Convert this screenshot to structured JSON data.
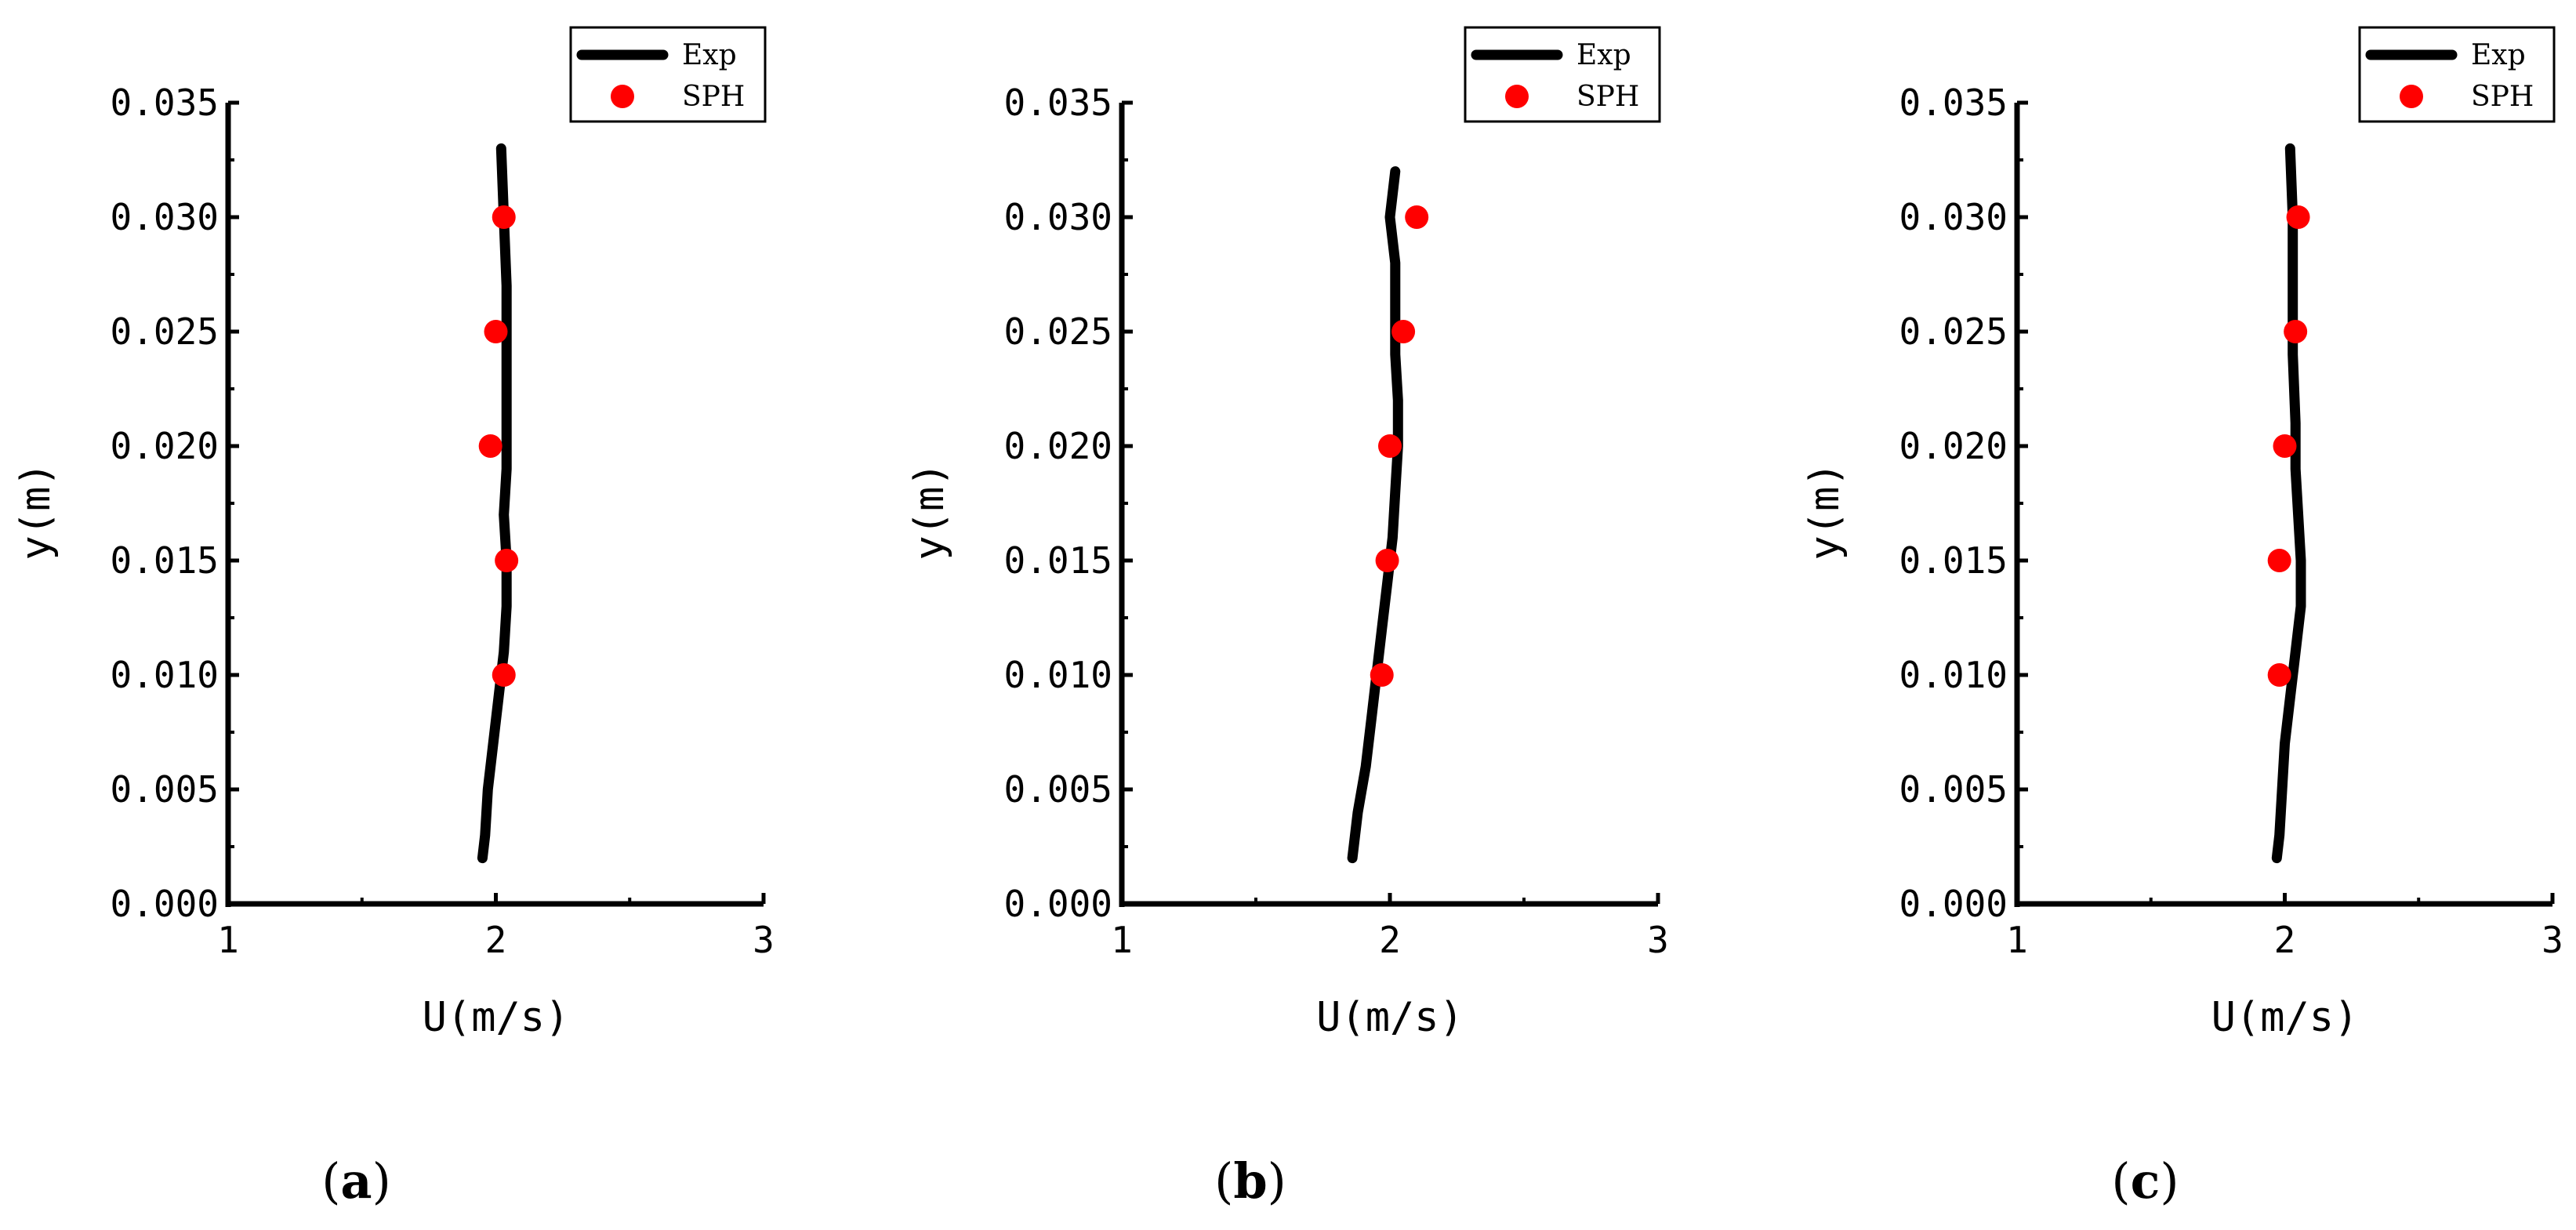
{
  "colors": {
    "exp_line": "#000000",
    "sph_marker": "#ff0000",
    "axis": "#000000"
  },
  "chart_data": [
    {
      "type": "line",
      "panel_label": "a",
      "xlabel": "U(m/s)",
      "ylabel": "y(m)",
      "xlim": [
        1,
        3
      ],
      "ylim": [
        0,
        0.035
      ],
      "xticks": [
        "1",
        "2",
        "3"
      ],
      "yticks": [
        "0.000",
        "0.005",
        "0.010",
        "0.015",
        "0.020",
        "0.025",
        "0.030",
        "0.035"
      ],
      "legend": {
        "placement": "top-right",
        "entries": [
          "Exp",
          "SPH"
        ]
      },
      "series": [
        {
          "name": "Exp",
          "style": "line",
          "x": [
            1.95,
            1.96,
            1.97,
            1.99,
            2.01,
            2.03,
            2.04,
            2.04,
            2.03,
            2.04,
            2.04,
            2.04,
            2.04,
            2.03,
            2.02
          ],
          "y": [
            0.002,
            0.003,
            0.005,
            0.007,
            0.009,
            0.011,
            0.013,
            0.015,
            0.017,
            0.019,
            0.021,
            0.024,
            0.027,
            0.03,
            0.033
          ]
        },
        {
          "name": "SPH",
          "style": "scatter",
          "x": [
            2.03,
            2.04,
            1.98,
            2.0,
            2.03
          ],
          "y": [
            0.01,
            0.015,
            0.02,
            0.025,
            0.03
          ]
        }
      ]
    },
    {
      "type": "line",
      "panel_label": "b",
      "xlabel": "U(m/s)",
      "ylabel": "y(m)",
      "xlim": [
        1,
        3
      ],
      "ylim": [
        0,
        0.035
      ],
      "xticks": [
        "1",
        "2",
        "3"
      ],
      "yticks": [
        "0.000",
        "0.005",
        "0.010",
        "0.015",
        "0.020",
        "0.025",
        "0.030",
        "0.035"
      ],
      "legend": {
        "placement": "top-right",
        "entries": [
          "Exp",
          "SPH"
        ]
      },
      "series": [
        {
          "name": "Exp",
          "style": "line",
          "x": [
            1.86,
            1.88,
            1.91,
            1.93,
            1.95,
            1.97,
            1.99,
            2.01,
            2.02,
            2.03,
            2.03,
            2.02,
            2.02,
            2.02,
            2.0,
            2.02
          ],
          "y": [
            0.002,
            0.004,
            0.006,
            0.008,
            0.01,
            0.012,
            0.014,
            0.016,
            0.018,
            0.02,
            0.022,
            0.024,
            0.026,
            0.028,
            0.03,
            0.032
          ]
        },
        {
          "name": "SPH",
          "style": "scatter",
          "x": [
            1.97,
            1.99,
            2.0,
            2.05,
            2.1
          ],
          "y": [
            0.01,
            0.015,
            0.02,
            0.025,
            0.03
          ]
        }
      ]
    },
    {
      "type": "line",
      "panel_label": "c",
      "xlabel": "U(m/s)",
      "ylabel": "y(m)",
      "xlim": [
        1,
        3
      ],
      "ylim": [
        0,
        0.035
      ],
      "xticks": [
        "1",
        "2",
        "3"
      ],
      "yticks": [
        "0.000",
        "0.005",
        "0.010",
        "0.015",
        "0.020",
        "0.025",
        "0.030",
        "0.035"
      ],
      "legend": {
        "placement": "top-right",
        "entries": [
          "Exp",
          "SPH"
        ]
      },
      "series": [
        {
          "name": "Exp",
          "style": "line",
          "x": [
            1.97,
            1.98,
            1.99,
            2.0,
            2.02,
            2.04,
            2.06,
            2.06,
            2.05,
            2.04,
            2.04,
            2.03,
            2.03,
            2.03,
            2.02
          ],
          "y": [
            0.002,
            0.003,
            0.005,
            0.007,
            0.009,
            0.011,
            0.013,
            0.015,
            0.017,
            0.019,
            0.021,
            0.024,
            0.027,
            0.03,
            0.033
          ]
        },
        {
          "name": "SPH",
          "style": "scatter",
          "x": [
            1.98,
            1.98,
            2.0,
            2.04,
            2.05
          ],
          "y": [
            0.01,
            0.015,
            0.02,
            0.025,
            0.03
          ]
        }
      ]
    }
  ]
}
